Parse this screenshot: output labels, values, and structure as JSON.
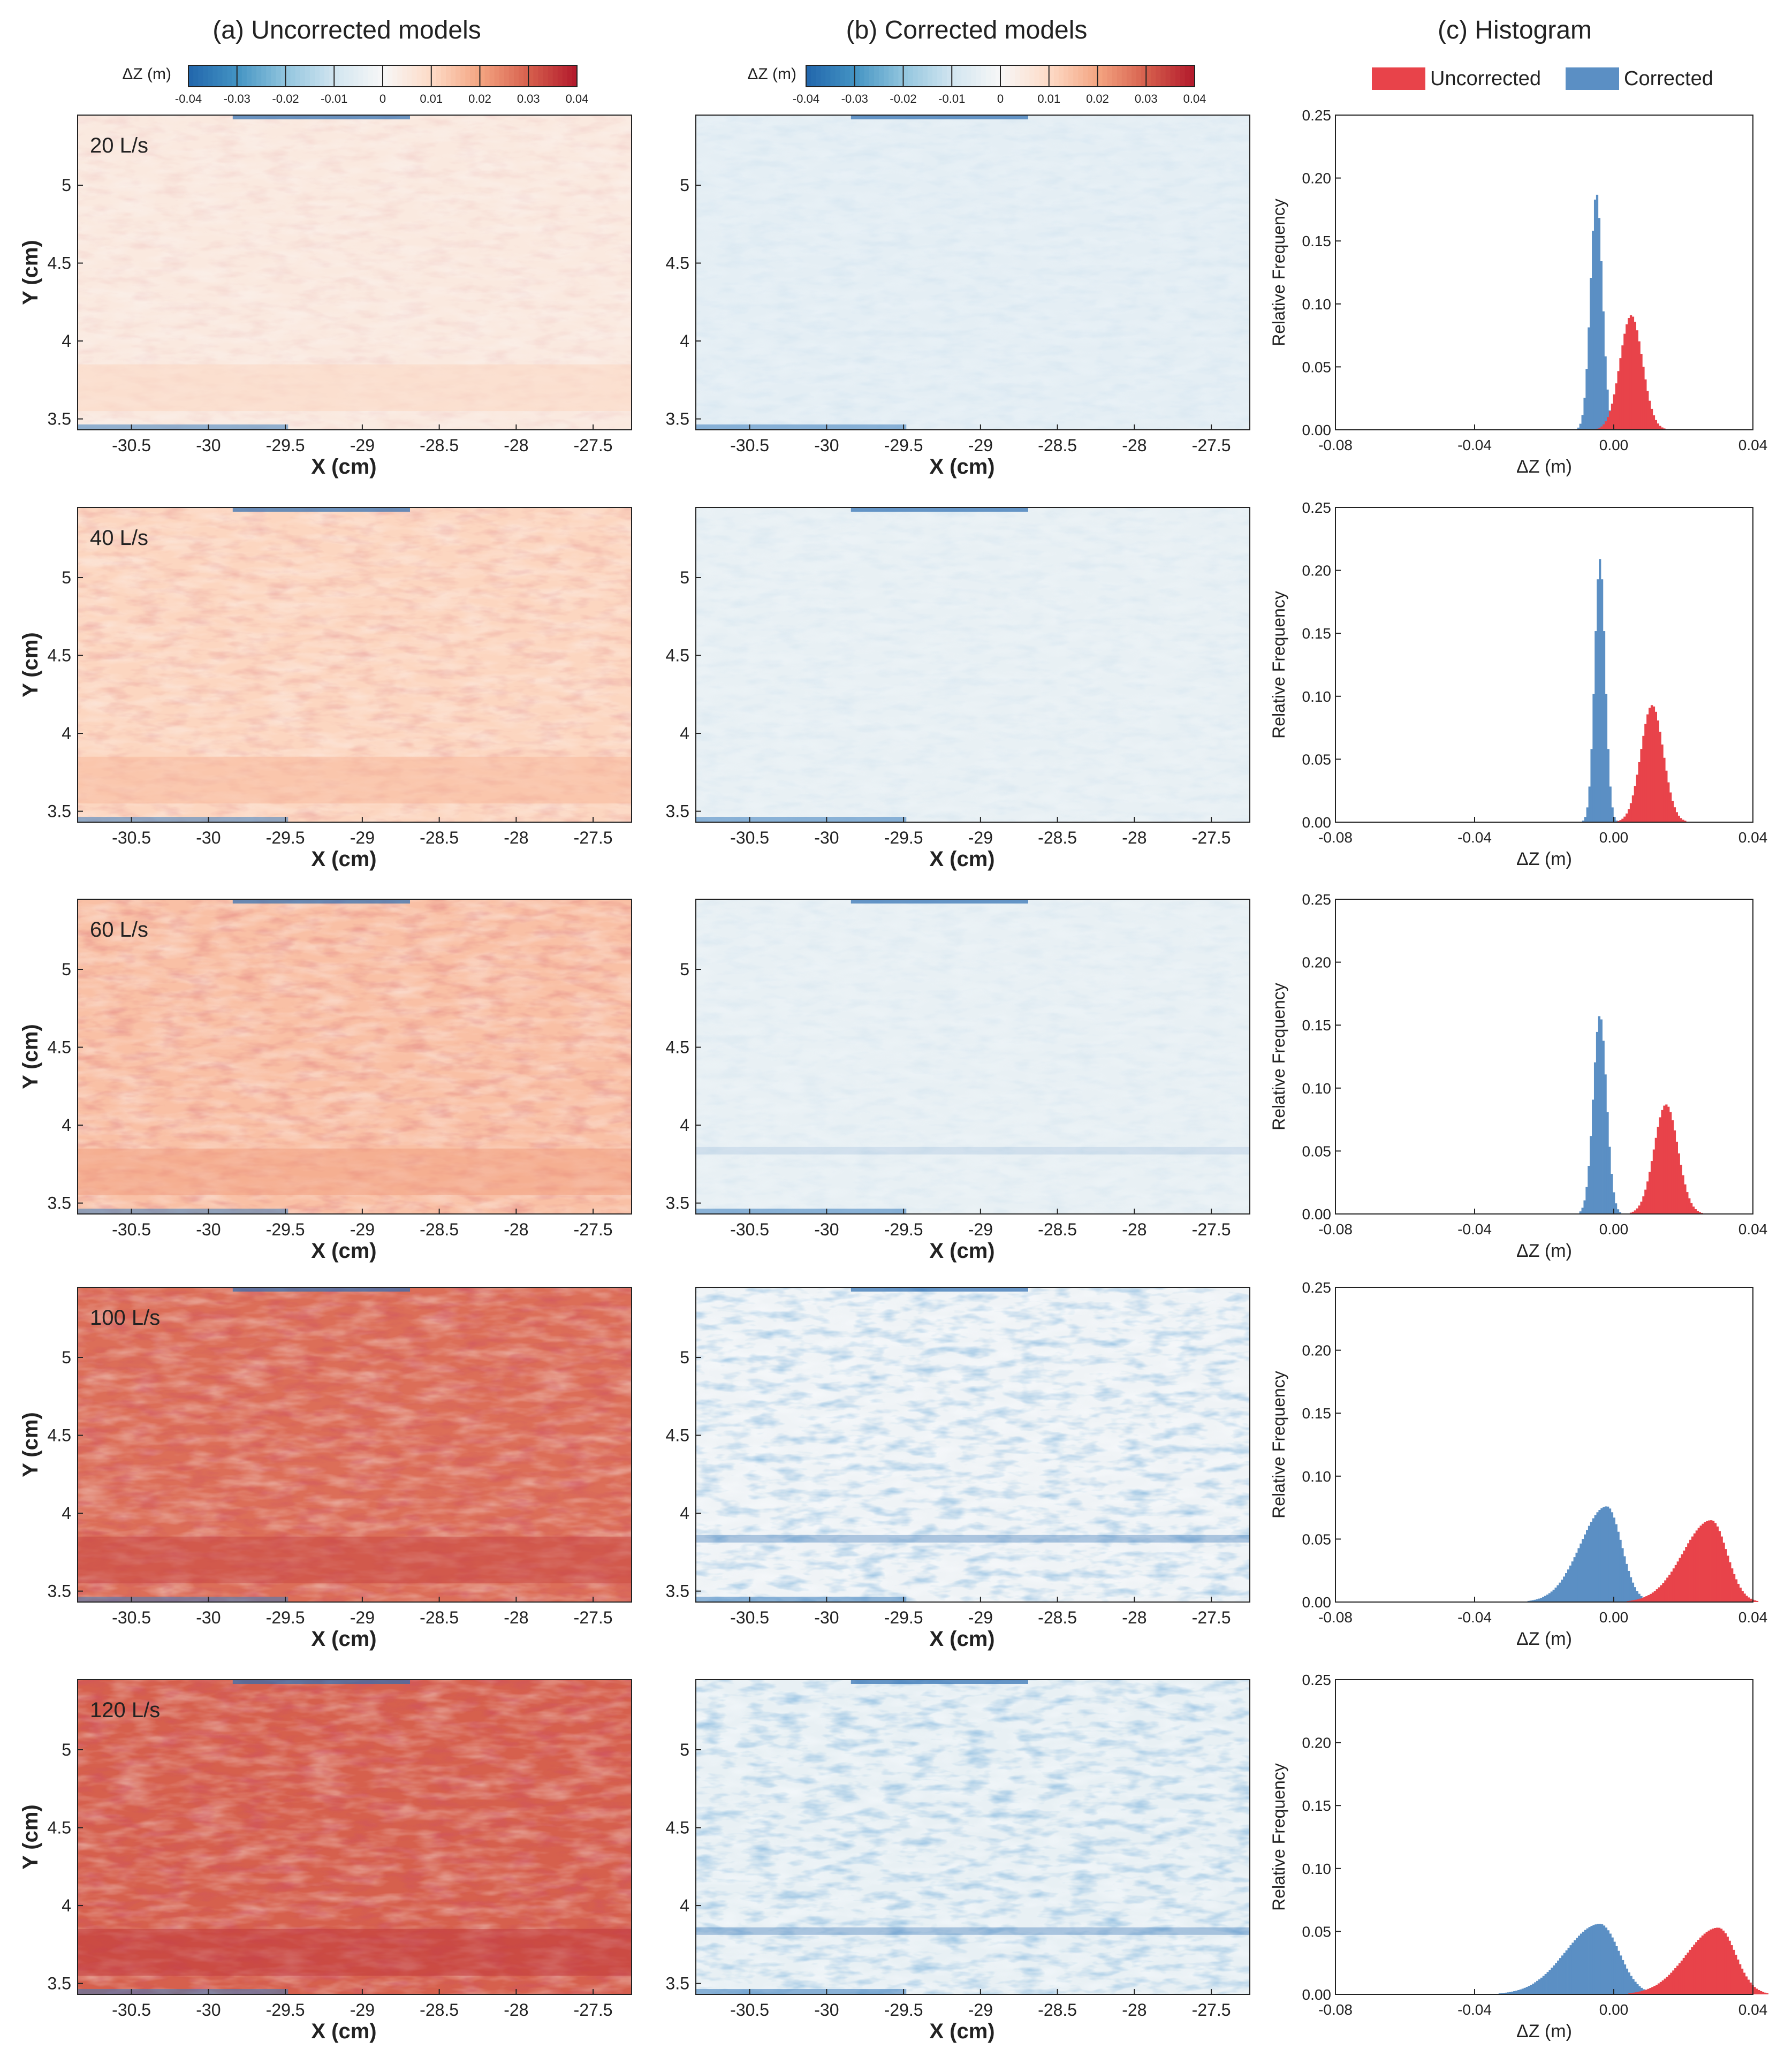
{
  "figure": {
    "panel_titles": [
      "(a) Uncorrected models",
      "(b) Corrected models",
      "(c) Histogram"
    ]
  },
  "colorbar": {
    "label": "ΔZ (m)",
    "ticks": [
      "-0.04",
      "-0.03",
      "-0.02",
      "-0.01",
      "0",
      "0.01",
      "0.02",
      "0.03",
      "0.04"
    ],
    "colors": [
      "#2166ac",
      "#4393c3",
      "#92c5de",
      "#d1e5f0",
      "#f7f7f7",
      "#fddbc7",
      "#f4a582",
      "#d6604d",
      "#b2182b"
    ]
  },
  "legend": {
    "items": [
      {
        "label": "Uncorrected",
        "color": "#e8434a"
      },
      {
        "label": "Corrected",
        "color": "#5b8fc4"
      }
    ]
  },
  "map_axes": {
    "xlabel": "X (cm)",
    "ylabel": "Y (cm)",
    "xlim": [
      -30.85,
      -27.25
    ],
    "ylim": [
      3.43,
      5.45
    ],
    "xticks": [
      -30.5,
      -30,
      -29.5,
      -29,
      -28.5,
      -28,
      -27.5
    ],
    "xtick_labels": [
      "-30.5",
      "-30",
      "-29.5",
      "-29",
      "-28.5",
      "-28",
      "-27.5"
    ],
    "yticks": [
      3.5,
      4,
      4.5,
      5
    ],
    "ytick_labels": [
      "3.5",
      "4",
      "4.5",
      "5"
    ]
  },
  "hist_axes": {
    "xlabel": "ΔZ (m)",
    "ylabel": "Relative Frequency",
    "xlim": [
      -0.08,
      0.04
    ],
    "ylim": [
      0,
      0.25
    ],
    "xticks": [
      -0.08,
      -0.04,
      0.0,
      0.04
    ],
    "xtick_labels": [
      "-0.08",
      "-0.04",
      "0.00",
      "0.04"
    ],
    "yticks": [
      0,
      0.05,
      0.1,
      0.15,
      0.2,
      0.25
    ],
    "ytick_labels": [
      "0.00",
      "0.05",
      "0.10",
      "0.15",
      "0.20",
      "0.25"
    ]
  },
  "rows": [
    {
      "label": "20 L/s",
      "uncorrected_mean": 0.005,
      "corrected_mean": -0.005
    },
    {
      "label": "40 L/s",
      "uncorrected_mean": 0.011,
      "corrected_mean": -0.004
    },
    {
      "label": "60 L/s",
      "uncorrected_mean": 0.015,
      "corrected_mean": -0.004
    },
    {
      "label": "100 L/s",
      "uncorrected_mean": 0.028,
      "corrected_mean": -0.002
    },
    {
      "label": "120 L/s",
      "uncorrected_mean": 0.03,
      "corrected_mean": -0.004
    }
  ],
  "chart_data": [
    {
      "type": "heatmap",
      "title": "(a) Uncorrected models",
      "series_label": "20 L/s",
      "xlabel": "X (cm)",
      "ylabel": "Y (cm)",
      "xlim": [
        -30.85,
        -27.25
      ],
      "ylim": [
        3.43,
        5.45
      ],
      "mean_dz_m": 0.005
    },
    {
      "type": "heatmap",
      "title": "(a) Uncorrected models",
      "series_label": "40 L/s",
      "xlabel": "X (cm)",
      "ylabel": "Y (cm)",
      "xlim": [
        -30.85,
        -27.25
      ],
      "ylim": [
        3.43,
        5.45
      ],
      "mean_dz_m": 0.011
    },
    {
      "type": "heatmap",
      "title": "(a) Uncorrected models",
      "series_label": "60 L/s",
      "xlabel": "X (cm)",
      "ylabel": "Y (cm)",
      "xlim": [
        -30.85,
        -27.25
      ],
      "ylim": [
        3.43,
        5.45
      ],
      "mean_dz_m": 0.015
    },
    {
      "type": "heatmap",
      "title": "(a) Uncorrected models",
      "series_label": "100 L/s",
      "xlabel": "X (cm)",
      "ylabel": "Y (cm)",
      "xlim": [
        -30.85,
        -27.25
      ],
      "ylim": [
        3.43,
        5.45
      ],
      "mean_dz_m": 0.028
    },
    {
      "type": "heatmap",
      "title": "(a) Uncorrected models",
      "series_label": "120 L/s",
      "xlabel": "X (cm)",
      "ylabel": "Y (cm)",
      "xlim": [
        -30.85,
        -27.25
      ],
      "ylim": [
        3.43,
        5.45
      ],
      "mean_dz_m": 0.03
    },
    {
      "type": "heatmap",
      "title": "(b) Corrected models",
      "series_label": "20 L/s",
      "xlabel": "X (cm)",
      "ylabel": "Y (cm)",
      "mean_dz_m": -0.005
    },
    {
      "type": "heatmap",
      "title": "(b) Corrected models",
      "series_label": "40 L/s",
      "xlabel": "X (cm)",
      "ylabel": "Y (cm)",
      "mean_dz_m": -0.004
    },
    {
      "type": "heatmap",
      "title": "(b) Corrected models",
      "series_label": "60 L/s",
      "xlabel": "X (cm)",
      "ylabel": "Y (cm)",
      "mean_dz_m": -0.004
    },
    {
      "type": "heatmap",
      "title": "(b) Corrected models",
      "series_label": "100 L/s",
      "xlabel": "X (cm)",
      "ylabel": "Y (cm)",
      "mean_dz_m": -0.002
    },
    {
      "type": "heatmap",
      "title": "(b) Corrected models",
      "series_label": "120 L/s",
      "xlabel": "X (cm)",
      "ylabel": "Y (cm)",
      "mean_dz_m": -0.004
    },
    {
      "type": "histogram",
      "title": "(c) Histogram",
      "series_label": "20 L/s",
      "xlabel": "ΔZ (m)",
      "ylabel": "Relative Frequency",
      "xlim": [
        -0.08,
        0.04
      ],
      "ylim": [
        0,
        0.25
      ],
      "series": [
        {
          "name": "Corrected",
          "mean": -0.005,
          "peak": 0.188,
          "sd": 0.0017
        },
        {
          "name": "Uncorrected",
          "mean": 0.005,
          "peak": 0.091,
          "sd": 0.0032
        }
      ]
    },
    {
      "type": "histogram",
      "title": "(c) Histogram",
      "series_label": "40 L/s",
      "xlabel": "ΔZ (m)",
      "ylabel": "Relative Frequency",
      "xlim": [
        -0.08,
        0.04
      ],
      "ylim": [
        0,
        0.25
      ],
      "series": [
        {
          "name": "Corrected",
          "mean": -0.004,
          "peak": 0.209,
          "sd": 0.0015
        },
        {
          "name": "Uncorrected",
          "mean": 0.011,
          "peak": 0.093,
          "sd": 0.0032
        }
      ]
    },
    {
      "type": "histogram",
      "title": "(c) Histogram",
      "series_label": "60 L/s",
      "xlabel": "ΔZ (m)",
      "ylabel": "Relative Frequency",
      "xlim": [
        -0.08,
        0.04
      ],
      "ylim": [
        0,
        0.25
      ],
      "series": [
        {
          "name": "Corrected",
          "mean": -0.004,
          "peak": 0.158,
          "sd": 0.0019
        },
        {
          "name": "Uncorrected",
          "mean": 0.015,
          "peak": 0.087,
          "sd": 0.0034
        }
      ]
    },
    {
      "type": "histogram",
      "title": "(c) Histogram",
      "series_label": "100 L/s",
      "xlabel": "ΔZ (m)",
      "ylabel": "Relative Frequency",
      "xlim": [
        -0.08,
        0.04
      ],
      "ylim": [
        0,
        0.25
      ],
      "series": [
        {
          "name": "Corrected",
          "mean": -0.002,
          "peak": 0.076,
          "sd": 0.0042,
          "skew_left": true
        },
        {
          "name": "Uncorrected",
          "mean": 0.028,
          "peak": 0.065,
          "sd": 0.0045,
          "skew_left": true
        }
      ]
    },
    {
      "type": "histogram",
      "title": "(c) Histogram",
      "series_label": "120 L/s",
      "xlabel": "ΔZ (m)",
      "ylabel": "Relative Frequency",
      "xlim": [
        -0.08,
        0.04
      ],
      "ylim": [
        0,
        0.25
      ],
      "series": [
        {
          "name": "Corrected",
          "mean": -0.004,
          "peak": 0.056,
          "sd": 0.0055,
          "skew_left": true
        },
        {
          "name": "Uncorrected",
          "mean": 0.03,
          "peak": 0.053,
          "sd": 0.005,
          "skew_left": true
        }
      ]
    }
  ]
}
